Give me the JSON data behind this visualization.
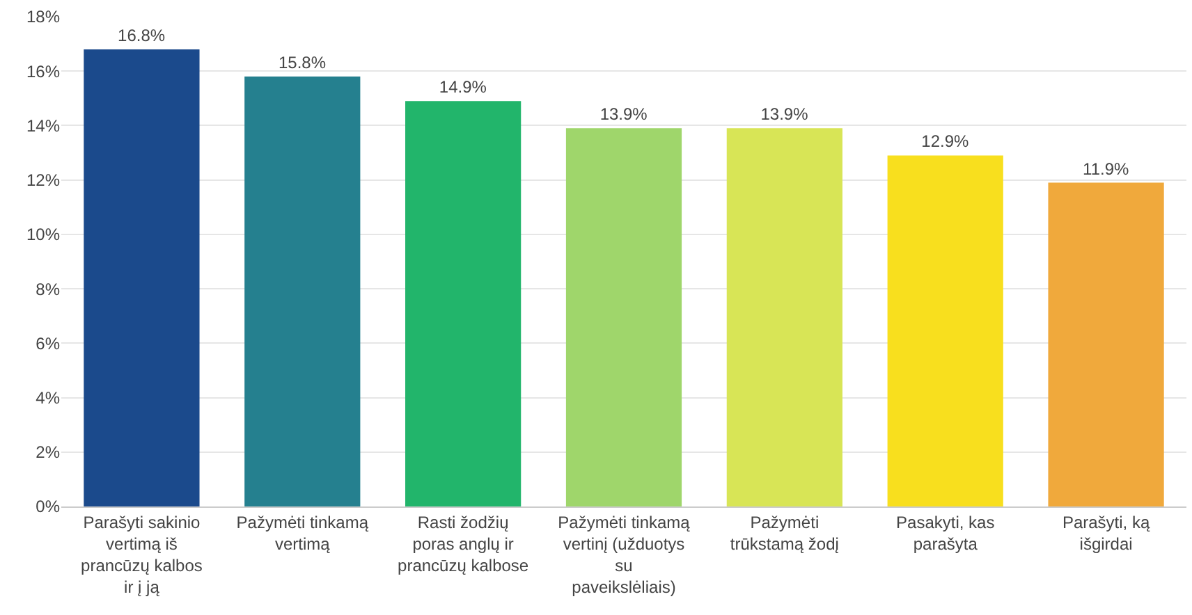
{
  "chart_data": {
    "type": "bar",
    "categories": [
      "Parašyti sakinio vertimą iš prancūzų kalbos ir į ją",
      "Pažymėti tinkamą vertimą",
      "Rasti žodžių poras anglų ir prancūzų kalbose",
      "Pažymėti tinkamą vertinį (užduotys su paveikslėliais)",
      "Pažymėti trūkstamą žodį",
      "Pasakyti, kas parašyta",
      "Parašyti, ką išgirdai"
    ],
    "values": [
      16.8,
      15.8,
      14.9,
      13.9,
      13.9,
      12.9,
      11.9
    ],
    "colors": [
      "#1b4a8c",
      "#25808f",
      "#22b56b",
      "#9fd66b",
      "#d8e556",
      "#f8df1e",
      "#f0a93c"
    ],
    "value_labels": [
      "16.8%",
      "15.8%",
      "14.9%",
      "13.9%",
      "13.9%",
      "12.9%",
      "11.9%"
    ],
    "ylim": [
      0,
      18
    ],
    "yticks": [
      {
        "value": 0,
        "label": "0%"
      },
      {
        "value": 2,
        "label": "2%"
      },
      {
        "value": 4,
        "label": "4%"
      },
      {
        "value": 6,
        "label": "6%"
      },
      {
        "value": 8,
        "label": "8%"
      },
      {
        "value": 10,
        "label": "10%"
      },
      {
        "value": 12,
        "label": "12%"
      },
      {
        "value": 14,
        "label": "14%"
      },
      {
        "value": 16,
        "label": "16%"
      },
      {
        "value": 18,
        "label": "18%"
      }
    ],
    "grid": "y"
  }
}
